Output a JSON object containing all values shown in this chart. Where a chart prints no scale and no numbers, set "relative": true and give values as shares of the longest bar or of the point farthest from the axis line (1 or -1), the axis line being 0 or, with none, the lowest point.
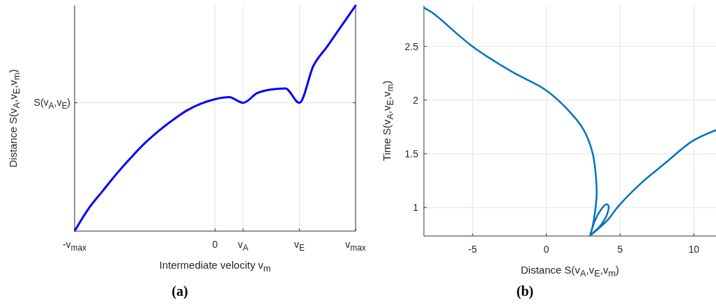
{
  "chart_data": [
    {
      "type": "line",
      "relative": true,
      "xlabel": "Intermediate velocity v$_{m}$",
      "ylabel": "Distance S(v$_{A}$,v$_{E}$,v$_{m}$)",
      "categories": [
        "-v$_{max}$",
        null,
        null,
        null,
        null,
        null,
        null,
        null,
        null,
        null,
        "0",
        null,
        "v$_{A}$",
        null,
        null,
        null,
        "v$_{E}$",
        null,
        null,
        null,
        "v$_{max}$"
      ],
      "grid": "x",
      "ref_lines": [
        {
          "axis": "y",
          "value": 0.569,
          "label": "S(v$_{A}$,v$_{E}$)"
        }
      ],
      "annotations": [
        "(a)"
      ],
      "series": [
        {
          "color": "#0000ff",
          "values": [
            0,
            0.1,
            0.178,
            0.255,
            0.325,
            0.39,
            0.445,
            0.493,
            0.535,
            0.565,
            0.585,
            0.594,
            0.569,
            0.612,
            0.628,
            0.633,
            0.569,
            0.733,
            0.82,
            0.91,
            1
          ]
        }
      ]
    },
    {
      "type": "line",
      "xlabel": "Distance S(v$_{A}$,v$_{E}$,v$_{m}$)",
      "ylabel": "Time S(v$_{A}$,v$_{E}$,v$_{m}$)",
      "xlim": [
        -8.3,
        11.5
      ],
      "ylim": [
        0.735,
        2.88
      ],
      "xticks": [
        -5,
        0,
        5,
        10
      ],
      "yticks": [
        1,
        1.5,
        2,
        2.5
      ],
      "grid": true,
      "annotations": [
        "(b)"
      ],
      "series": [
        {
          "color": "#0072bd",
          "x": [
            -8.3,
            -7.69,
            -5.01,
            -2.4,
            0,
            1.39,
            2.5,
            3.13,
            3.36,
            3.41,
            3.29,
            3.13,
            2.97,
            3.3,
            3.7,
            4.05,
            4.2,
            4.1,
            3.6,
            2.97,
            3.5,
            4.2,
            4.87,
            6.45,
            8.03,
            9.92,
            11.5
          ],
          "values": [
            2.86,
            2.81,
            2.5,
            2.27,
            2.09,
            1.92,
            1.73,
            1.51,
            1.29,
            1.12,
            0.95,
            0.82,
            0.74,
            0.88,
            0.98,
            1.03,
            1.02,
            0.93,
            0.82,
            0.74,
            0.8,
            0.89,
            1.01,
            1.23,
            1.41,
            1.62,
            1.72
          ]
        }
      ]
    }
  ]
}
